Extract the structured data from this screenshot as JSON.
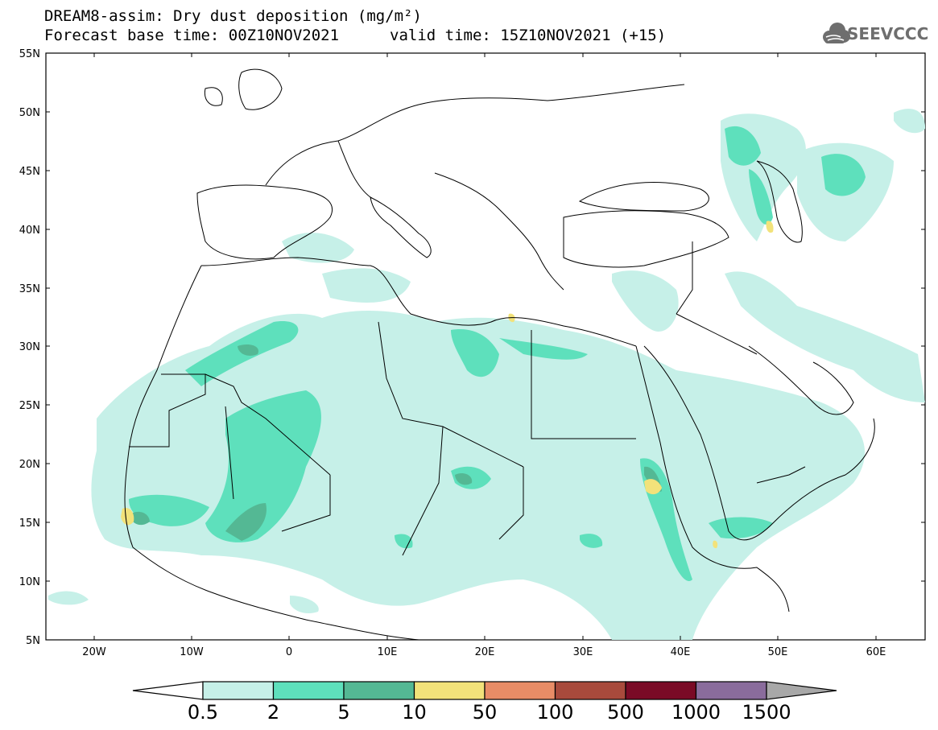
{
  "header": {
    "title": "DREAM8-assim: Dry dust deposition (mg/m²)",
    "base_time": "Forecast base time: 00Z10NOV2021",
    "valid_time": "valid time: 15Z10NOV2021 (+15)"
  },
  "logo": {
    "text": "SEEVCCC",
    "icon": "cloud-icon"
  },
  "map": {
    "lon_labels": [
      "20W",
      "10W",
      "0",
      "10E",
      "20E",
      "30E",
      "40E",
      "50E",
      "60E"
    ],
    "lat_labels": [
      "55N",
      "50N",
      "45N",
      "40N",
      "35N",
      "30N",
      "25N",
      "20N",
      "15N",
      "10N",
      "5N"
    ],
    "lon_range": [
      -25,
      65
    ],
    "lat_range": [
      5,
      55
    ]
  },
  "colorbar": {
    "labels": [
      "0.5",
      "2",
      "5",
      "10",
      "50",
      "100",
      "500",
      "1000",
      "1500"
    ],
    "colors": [
      "#c6f0e8",
      "#5ee0bc",
      "#54b894",
      "#f2e27a",
      "#e88c66",
      "#a84a3c",
      "#7a0a26",
      "#8a6c9c"
    ],
    "under_color": "#ffffff",
    "over_color": "#a8a8a8"
  }
}
